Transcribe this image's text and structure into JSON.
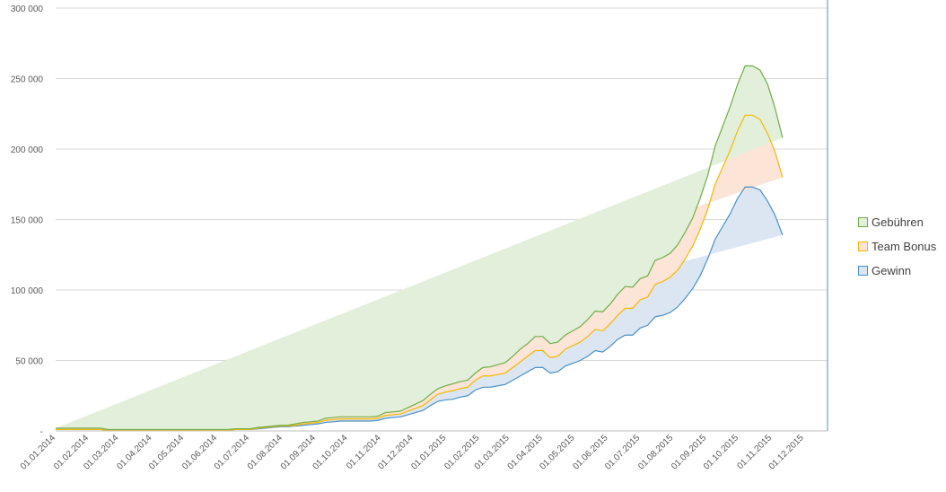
{
  "chart_data": {
    "type": "area",
    "stacked": true,
    "title": "",
    "xlabel": "",
    "ylabel": "",
    "ylim": [
      0,
      300000
    ],
    "yticks": [
      0,
      50000,
      100000,
      150000,
      200000,
      250000,
      300000
    ],
    "ytick_labels": [
      "-",
      "50 000",
      "100 000",
      "150 000",
      "200 000",
      "250 000",
      "300 000"
    ],
    "grid": true,
    "legend_position": "right",
    "x_dates": [
      "2014-01-01",
      "2014-01-08",
      "2014-01-15",
      "2014-01-22",
      "2014-01-29",
      "2014-02-05",
      "2014-02-12",
      "2014-02-19",
      "2014-02-26",
      "2014-03-05",
      "2014-03-12",
      "2014-03-19",
      "2014-03-26",
      "2014-04-02",
      "2014-04-09",
      "2014-04-16",
      "2014-04-23",
      "2014-04-30",
      "2014-05-07",
      "2014-05-14",
      "2014-05-21",
      "2014-05-28",
      "2014-06-04",
      "2014-06-11",
      "2014-06-18",
      "2014-06-25",
      "2014-07-02",
      "2014-07-09",
      "2014-07-16",
      "2014-07-23",
      "2014-07-30",
      "2014-08-06",
      "2014-08-13",
      "2014-08-20",
      "2014-08-27",
      "2014-09-03",
      "2014-09-10",
      "2014-09-17",
      "2014-09-24",
      "2014-10-01",
      "2014-10-08",
      "2014-10-15",
      "2014-10-22",
      "2014-10-29",
      "2014-11-05",
      "2014-11-12",
      "2014-11-19",
      "2014-11-26",
      "2014-12-03",
      "2014-12-10",
      "2014-12-17",
      "2014-12-24",
      "2014-12-31",
      "2015-01-07",
      "2015-01-14",
      "2015-01-21",
      "2015-01-28",
      "2015-02-04",
      "2015-02-11",
      "2015-02-18",
      "2015-02-25",
      "2015-03-04",
      "2015-03-11",
      "2015-03-18",
      "2015-03-25",
      "2015-04-01",
      "2015-04-08",
      "2015-04-15",
      "2015-04-22",
      "2015-04-29",
      "2015-05-06",
      "2015-05-13",
      "2015-05-20",
      "2015-05-27",
      "2015-06-03",
      "2015-06-10",
      "2015-06-17",
      "2015-06-24",
      "2015-07-01",
      "2015-07-08",
      "2015-07-15",
      "2015-07-22",
      "2015-07-29",
      "2015-08-05",
      "2015-08-12",
      "2015-08-19",
      "2015-08-26",
      "2015-09-02",
      "2015-09-09",
      "2015-09-16",
      "2015-09-23",
      "2015-09-30",
      "2015-10-07",
      "2015-10-14",
      "2015-10-21",
      "2015-10-28",
      "2015-11-04",
      "2015-11-11",
      "2015-11-18",
      "2015-11-25",
      "2015-12-02",
      "2015-12-09",
      "2015-12-16",
      "2015-12-23"
    ],
    "x_label_dates": [
      "2014-01-01",
      "2014-02-01",
      "2014-03-01",
      "2014-04-01",
      "2014-05-01",
      "2014-06-01",
      "2014-07-01",
      "2014-08-01",
      "2014-09-01",
      "2014-10-01",
      "2014-11-01",
      "2014-12-01",
      "2015-01-01",
      "2015-02-01",
      "2015-03-01",
      "2015-04-01",
      "2015-05-01",
      "2015-06-01",
      "2015-07-01",
      "2015-08-01",
      "2015-09-01",
      "2015-10-01",
      "2015-11-01",
      "2015-12-01"
    ],
    "x_labels": [
      "01.01.2014",
      "01.02.2014",
      "01.03.2014",
      "01.04.2014",
      "01.05.2014",
      "01.06.2014",
      "01.07.2014",
      "01.08.2014",
      "01.09.2014",
      "01.10.2014",
      "01.11.2014",
      "01.12.2014",
      "01.01.2015",
      "01.02.2015",
      "01.03.2015",
      "01.04.2015",
      "01.05.2015",
      "01.06.2015",
      "01.07.2015",
      "01.08.2015",
      "01.09.2015",
      "01.10.2015",
      "01.11.2015",
      "01.12.2015"
    ],
    "series": [
      {
        "name": "Gewinn",
        "fill": "#dce6f2",
        "stroke": "#4a90c8",
        "values": [
          1000,
          1000,
          1000,
          1000,
          1000,
          1000,
          1000,
          500,
          500,
          500,
          500,
          500,
          500,
          500,
          500,
          500,
          500,
          500,
          500,
          500,
          500,
          500,
          500,
          500,
          1000,
          1000,
          1000,
          1500,
          2000,
          2500,
          3000,
          3000,
          3500,
          4000,
          4500,
          5000,
          6000,
          6500,
          7000,
          7000,
          7000,
          7000,
          7000,
          7500,
          9000,
          9500,
          10000,
          11500,
          13000,
          14500,
          18000,
          21000,
          22000,
          22500,
          24000,
          25000,
          29000,
          31000,
          31000,
          32000,
          33000,
          36000,
          39000,
          42000,
          45000,
          45000,
          41000,
          42000,
          46000,
          48000,
          50000,
          53000,
          57000,
          56000,
          60000,
          65000,
          68000,
          68000,
          73000,
          75000,
          81000,
          82000,
          84000,
          88000,
          94000,
          101000,
          110000,
          122000,
          136000,
          145000,
          154000,
          165000,
          173000,
          173000,
          171000,
          163000,
          153000,
          139000
        ]
      },
      {
        "name": "Team Bonus",
        "fill": "#fce4d6",
        "stroke": "#f5b800",
        "values": [
          0,
          0,
          0,
          0,
          0,
          0,
          0,
          0,
          0,
          0,
          0,
          0,
          0,
          0,
          0,
          0,
          0,
          0,
          0,
          0,
          0,
          0,
          0,
          0,
          0,
          0,
          0,
          500,
          500,
          500,
          500,
          500,
          500,
          1000,
          1000,
          1000,
          1500,
          1500,
          1500,
          1500,
          1500,
          1500,
          1500,
          1500,
          2000,
          2000,
          2000,
          2500,
          3000,
          3500,
          4000,
          5000,
          5500,
          6000,
          6000,
          6000,
          7000,
          8000,
          8000,
          8000,
          8000,
          9000,
          10000,
          11000,
          12000,
          12000,
          11000,
          11000,
          12000,
          12500,
          13000,
          14000,
          15000,
          15000,
          16000,
          17000,
          19000,
          19000,
          20000,
          20000,
          23000,
          24000,
          25000,
          26000,
          28000,
          30000,
          33000,
          35000,
          39000,
          42000,
          45000,
          48000,
          51000,
          51000,
          50000,
          48000,
          45000,
          41000
        ]
      },
      {
        "name": "Gebühren",
        "fill": "#e2efda",
        "stroke": "#70ad47",
        "values": [
          1000,
          1000,
          1000,
          1000,
          1000,
          1000,
          1000,
          500,
          500,
          500,
          500,
          500,
          500,
          500,
          500,
          500,
          500,
          500,
          500,
          500,
          500,
          500,
          500,
          500,
          500,
          500,
          500,
          500,
          500,
          500,
          500,
          500,
          1000,
          1000,
          1000,
          1000,
          1500,
          1500,
          1500,
          1500,
          1500,
          1500,
          1500,
          1500,
          2000,
          2000,
          2000,
          2500,
          3000,
          3500,
          4000,
          4000,
          4500,
          5000,
          5000,
          5000,
          5000,
          6000,
          6500,
          7000,
          7500,
          8000,
          9000,
          9000,
          10000,
          10000,
          10000,
          10000,
          10000,
          10500,
          11000,
          12000,
          13000,
          13500,
          14000,
          15000,
          15500,
          15000,
          15000,
          15000,
          17000,
          17000,
          17000,
          18000,
          19000,
          20000,
          22000,
          24000,
          27000,
          29000,
          31000,
          33000,
          35000,
          35000,
          35000,
          35000,
          31000,
          28000
        ]
      }
    ],
    "legend": [
      "Gebühren",
      "Team Bonus",
      "Gewinn"
    ]
  }
}
